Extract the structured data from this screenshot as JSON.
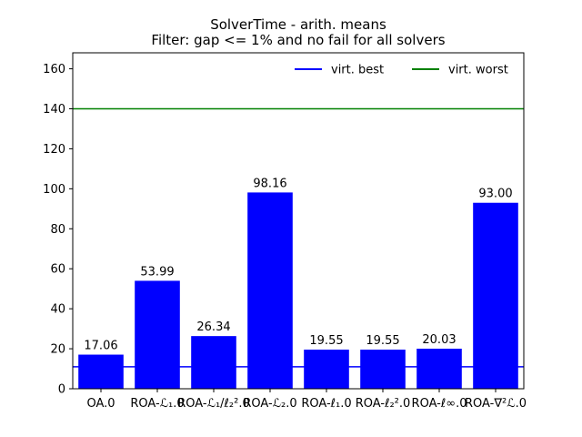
{
  "chart_data": {
    "type": "bar",
    "title": "SolverTime - arith. means",
    "subtitle": "Filter: gap <= 1% and no fail for all solvers",
    "xlabel": "",
    "ylabel": "",
    "categories": [
      "OA.0",
      "ROA-ℒ₁.0",
      "ROA-ℒ₁/ℓ₂².0",
      "ROA-ℒ₂.0",
      "ROA-ℓ₁.0",
      "ROA-ℓ₂².0",
      "ROA-ℓ∞.0",
      "ROA-∇²ℒ.0"
    ],
    "values": [
      17.06,
      53.99,
      26.34,
      98.16,
      19.55,
      19.55,
      20.03,
      93.0
    ],
    "value_labels": [
      "17.06",
      "53.99",
      "26.34",
      "98.16",
      "19.55",
      "19.55",
      "20.03",
      "93.00"
    ],
    "bar_color": "#0000ff",
    "ylim": [
      0,
      168
    ],
    "yticks": [
      0,
      20,
      40,
      60,
      80,
      100,
      120,
      140,
      160
    ],
    "grid": false,
    "legend_position": "top-right",
    "reference_lines": [
      {
        "name": "virt. best",
        "value": 11,
        "color": "#0000ff"
      },
      {
        "name": "virt. worst",
        "value": 140,
        "color": "#008000"
      }
    ]
  }
}
